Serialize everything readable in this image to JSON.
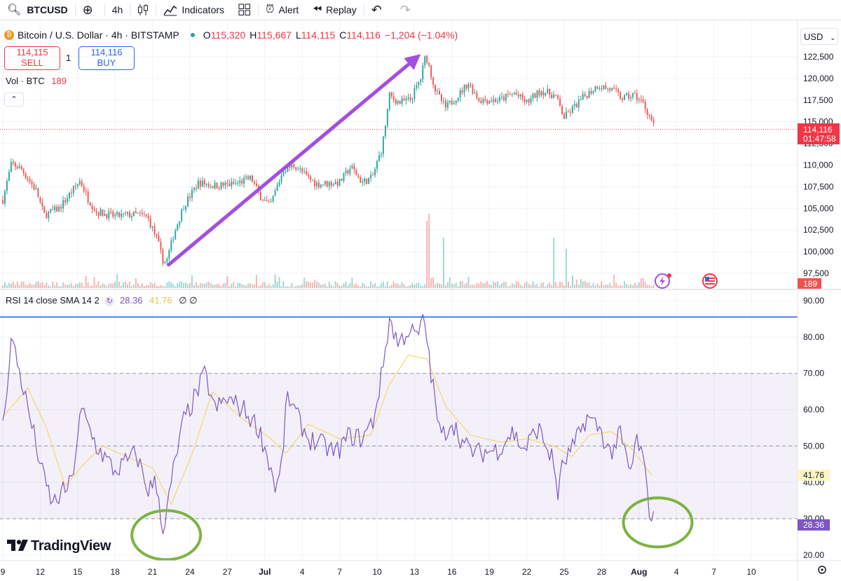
{
  "toolbar": {
    "symbol": "BTCUSD",
    "interval": "4h",
    "indicators_label": "Indicators",
    "alert_label": "Alert",
    "replay_label": "Replay"
  },
  "legend": {
    "title": "Bitcoin / U.S. Dollar · 4h · BITSTAMP",
    "o_label": "O",
    "o_value": "115,320",
    "h_label": "H",
    "h_value": "115,667",
    "l_label": "L",
    "l_value": "114,115",
    "c_label": "C",
    "c_value": "114,116",
    "change": "−1,204 (−1.04%)"
  },
  "trade": {
    "sell_price": "114,115",
    "sell_label": "SELL",
    "buy_price": "114,116",
    "buy_label": "BUY",
    "quantity": "1"
  },
  "volume": {
    "label": "Vol · BTC",
    "value": "189"
  },
  "currency": "USD",
  "price_tag": {
    "price": "114,116",
    "countdown": "01:47:58",
    "volume": "189"
  },
  "rsi": {
    "label": "RSI 14 close SMA 14 2",
    "value": "28.36",
    "sma_value": "41.76",
    "nulls": "∅ ∅"
  },
  "branding": "TradingView",
  "colors": {
    "up": "#26a69a",
    "down": "#ef5350",
    "rsi": "#7e57c2",
    "rsi_sma": "#f5d76e",
    "arrow": "#a24ee0",
    "circle": "#7cb342",
    "blue_line": "#2962ff"
  },
  "chart_data": {
    "type": "candlestick",
    "price_axis": {
      "ticks": [
        "122,500",
        "120,000",
        "117,500",
        "115,000",
        "112,500",
        "110,000",
        "107,500",
        "105,000",
        "102,500",
        "100,000",
        "97,500"
      ],
      "ylim": [
        97500,
        122500
      ]
    },
    "rsi_axis": {
      "ticks": [
        "90.00",
        "80.00",
        "70.00",
        "60.00",
        "50.00",
        "40.00",
        "30.00",
        "20.00"
      ],
      "ylim": [
        20,
        90
      ],
      "band": [
        30,
        70
      ],
      "midline": 50,
      "marker_line": 85.5
    },
    "x_ticks": [
      "9",
      "12",
      "15",
      "18",
      "21",
      "24",
      "27",
      "Jul",
      "4",
      "7",
      "10",
      "13",
      "16",
      "19",
      "22",
      "25",
      "28",
      "Aug",
      "4",
      "7",
      "10"
    ],
    "close_path": [
      [
        0,
        106000
      ],
      [
        0.7,
        110200
      ],
      [
        1.5,
        109500
      ],
      [
        2.7,
        107000
      ],
      [
        3.3,
        104200
      ],
      [
        4.5,
        105000
      ],
      [
        6.2,
        108200
      ],
      [
        6.8,
        106200
      ],
      [
        7.5,
        104600
      ],
      [
        9,
        104100
      ],
      [
        10.7,
        104300
      ],
      [
        11.6,
        104000
      ],
      [
        12.4,
        101300
      ],
      [
        12.8,
        99100
      ],
      [
        13.1,
        98700
      ],
      [
        13.7,
        102000
      ],
      [
        14.5,
        105300
      ],
      [
        15.7,
        108000
      ],
      [
        17,
        107600
      ],
      [
        18.6,
        107800
      ],
      [
        19.9,
        108500
      ],
      [
        20.6,
        106500
      ],
      [
        21.4,
        105200
      ],
      [
        22.5,
        109500
      ],
      [
        23.4,
        110000
      ],
      [
        24.4,
        108600
      ],
      [
        25.2,
        107800
      ],
      [
        27,
        108000
      ],
      [
        27.9,
        109800
      ],
      [
        28.8,
        108000
      ],
      [
        29.6,
        108500
      ],
      [
        30.4,
        112000
      ],
      [
        31,
        118000
      ],
      [
        31.8,
        117200
      ],
      [
        32.7,
        117600
      ],
      [
        33.5,
        120000
      ],
      [
        33.9,
        122800
      ],
      [
        34.7,
        118500
      ],
      [
        35.5,
        116600
      ],
      [
        36.6,
        118200
      ],
      [
        37.3,
        119500
      ],
      [
        38.2,
        117500
      ],
      [
        39.8,
        117500
      ],
      [
        41,
        118300
      ],
      [
        42,
        117200
      ],
      [
        43.1,
        118600
      ],
      [
        44.3,
        118000
      ],
      [
        45,
        115500
      ],
      [
        45.8,
        116700
      ],
      [
        46.6,
        117900
      ],
      [
        47.7,
        119200
      ],
      [
        48.8,
        118700
      ],
      [
        49.7,
        117700
      ],
      [
        50.6,
        118100
      ],
      [
        51.3,
        117200
      ],
      [
        51.9,
        115500
      ],
      [
        52.3,
        114100
      ]
    ],
    "volume_spikes": [
      [
        34.1,
        12
      ],
      [
        35.3,
        9
      ],
      [
        44.2,
        9
      ],
      [
        45.1,
        7
      ]
    ],
    "rsi_path": [
      [
        0,
        55
      ],
      [
        0.7,
        80
      ],
      [
        1.5,
        68
      ],
      [
        2.5,
        53
      ],
      [
        3.2,
        42
      ],
      [
        4,
        34
      ],
      [
        5.5,
        40
      ],
      [
        6.3,
        60
      ],
      [
        7.5,
        50
      ],
      [
        9,
        43
      ],
      [
        10.7,
        48
      ],
      [
        11.6,
        38
      ],
      [
        12.3,
        40
      ],
      [
        12.9,
        26
      ],
      [
        13.6,
        42
      ],
      [
        14.5,
        57
      ],
      [
        15.5,
        64
      ],
      [
        16.2,
        70
      ],
      [
        17,
        60
      ],
      [
        18,
        63
      ],
      [
        19.3,
        60
      ],
      [
        20.5,
        55
      ],
      [
        21.4,
        45
      ],
      [
        21.9,
        38
      ],
      [
        22.3,
        43
      ],
      [
        22.8,
        64
      ],
      [
        23.6,
        58
      ],
      [
        24.5,
        52
      ],
      [
        25.8,
        50
      ],
      [
        26.7,
        48
      ],
      [
        27.8,
        53
      ],
      [
        28.8,
        52
      ],
      [
        29.7,
        57
      ],
      [
        30.4,
        70
      ],
      [
        31,
        85
      ],
      [
        31.7,
        78
      ],
      [
        32.5,
        82
      ],
      [
        33.2,
        80
      ],
      [
        33.8,
        85
      ],
      [
        34.4,
        68
      ],
      [
        35.1,
        52
      ],
      [
        36,
        57
      ],
      [
        37,
        50
      ],
      [
        38,
        48
      ],
      [
        39.7,
        49
      ],
      [
        40.8,
        54
      ],
      [
        41.8,
        49
      ],
      [
        42.9,
        55
      ],
      [
        44.1,
        46
      ],
      [
        44.5,
        37
      ],
      [
        44.9,
        45
      ],
      [
        45.8,
        50
      ],
      [
        46.8,
        58
      ],
      [
        47.8,
        55
      ],
      [
        48.7,
        48
      ],
      [
        49.5,
        53
      ],
      [
        50.3,
        42
      ],
      [
        50.8,
        52
      ],
      [
        51.3,
        47
      ],
      [
        51.8,
        33
      ],
      [
        52.3,
        28.4
      ]
    ],
    "rsi_sma_path": [
      [
        0,
        58
      ],
      [
        2,
        66
      ],
      [
        3.5,
        55
      ],
      [
        5,
        39
      ],
      [
        6.5,
        45
      ],
      [
        8,
        50
      ],
      [
        10,
        47
      ],
      [
        12,
        44
      ],
      [
        13.5,
        34
      ],
      [
        15.2,
        48
      ],
      [
        16.8,
        65
      ],
      [
        19,
        58
      ],
      [
        21.5,
        52
      ],
      [
        22.7,
        48
      ],
      [
        24.5,
        56
      ],
      [
        27,
        52
      ],
      [
        29.5,
        53
      ],
      [
        31,
        67
      ],
      [
        32.5,
        75
      ],
      [
        34,
        74
      ],
      [
        35.5,
        61
      ],
      [
        37.5,
        53
      ],
      [
        40,
        51
      ],
      [
        42,
        52
      ],
      [
        44.2,
        50
      ],
      [
        45.6,
        47
      ],
      [
        47,
        53
      ],
      [
        48.8,
        54
      ],
      [
        50.5,
        49
      ],
      [
        52,
        42
      ]
    ],
    "annotations": [
      {
        "type": "arrow",
        "from": [
          13.3,
          98500
        ],
        "to": [
          33.5,
          122800
        ]
      },
      {
        "type": "ellipse",
        "pane": "rsi",
        "center": [
          13.1,
          25.5
        ]
      },
      {
        "type": "ellipse",
        "pane": "rsi",
        "center": [
          52.5,
          29
        ]
      }
    ]
  }
}
